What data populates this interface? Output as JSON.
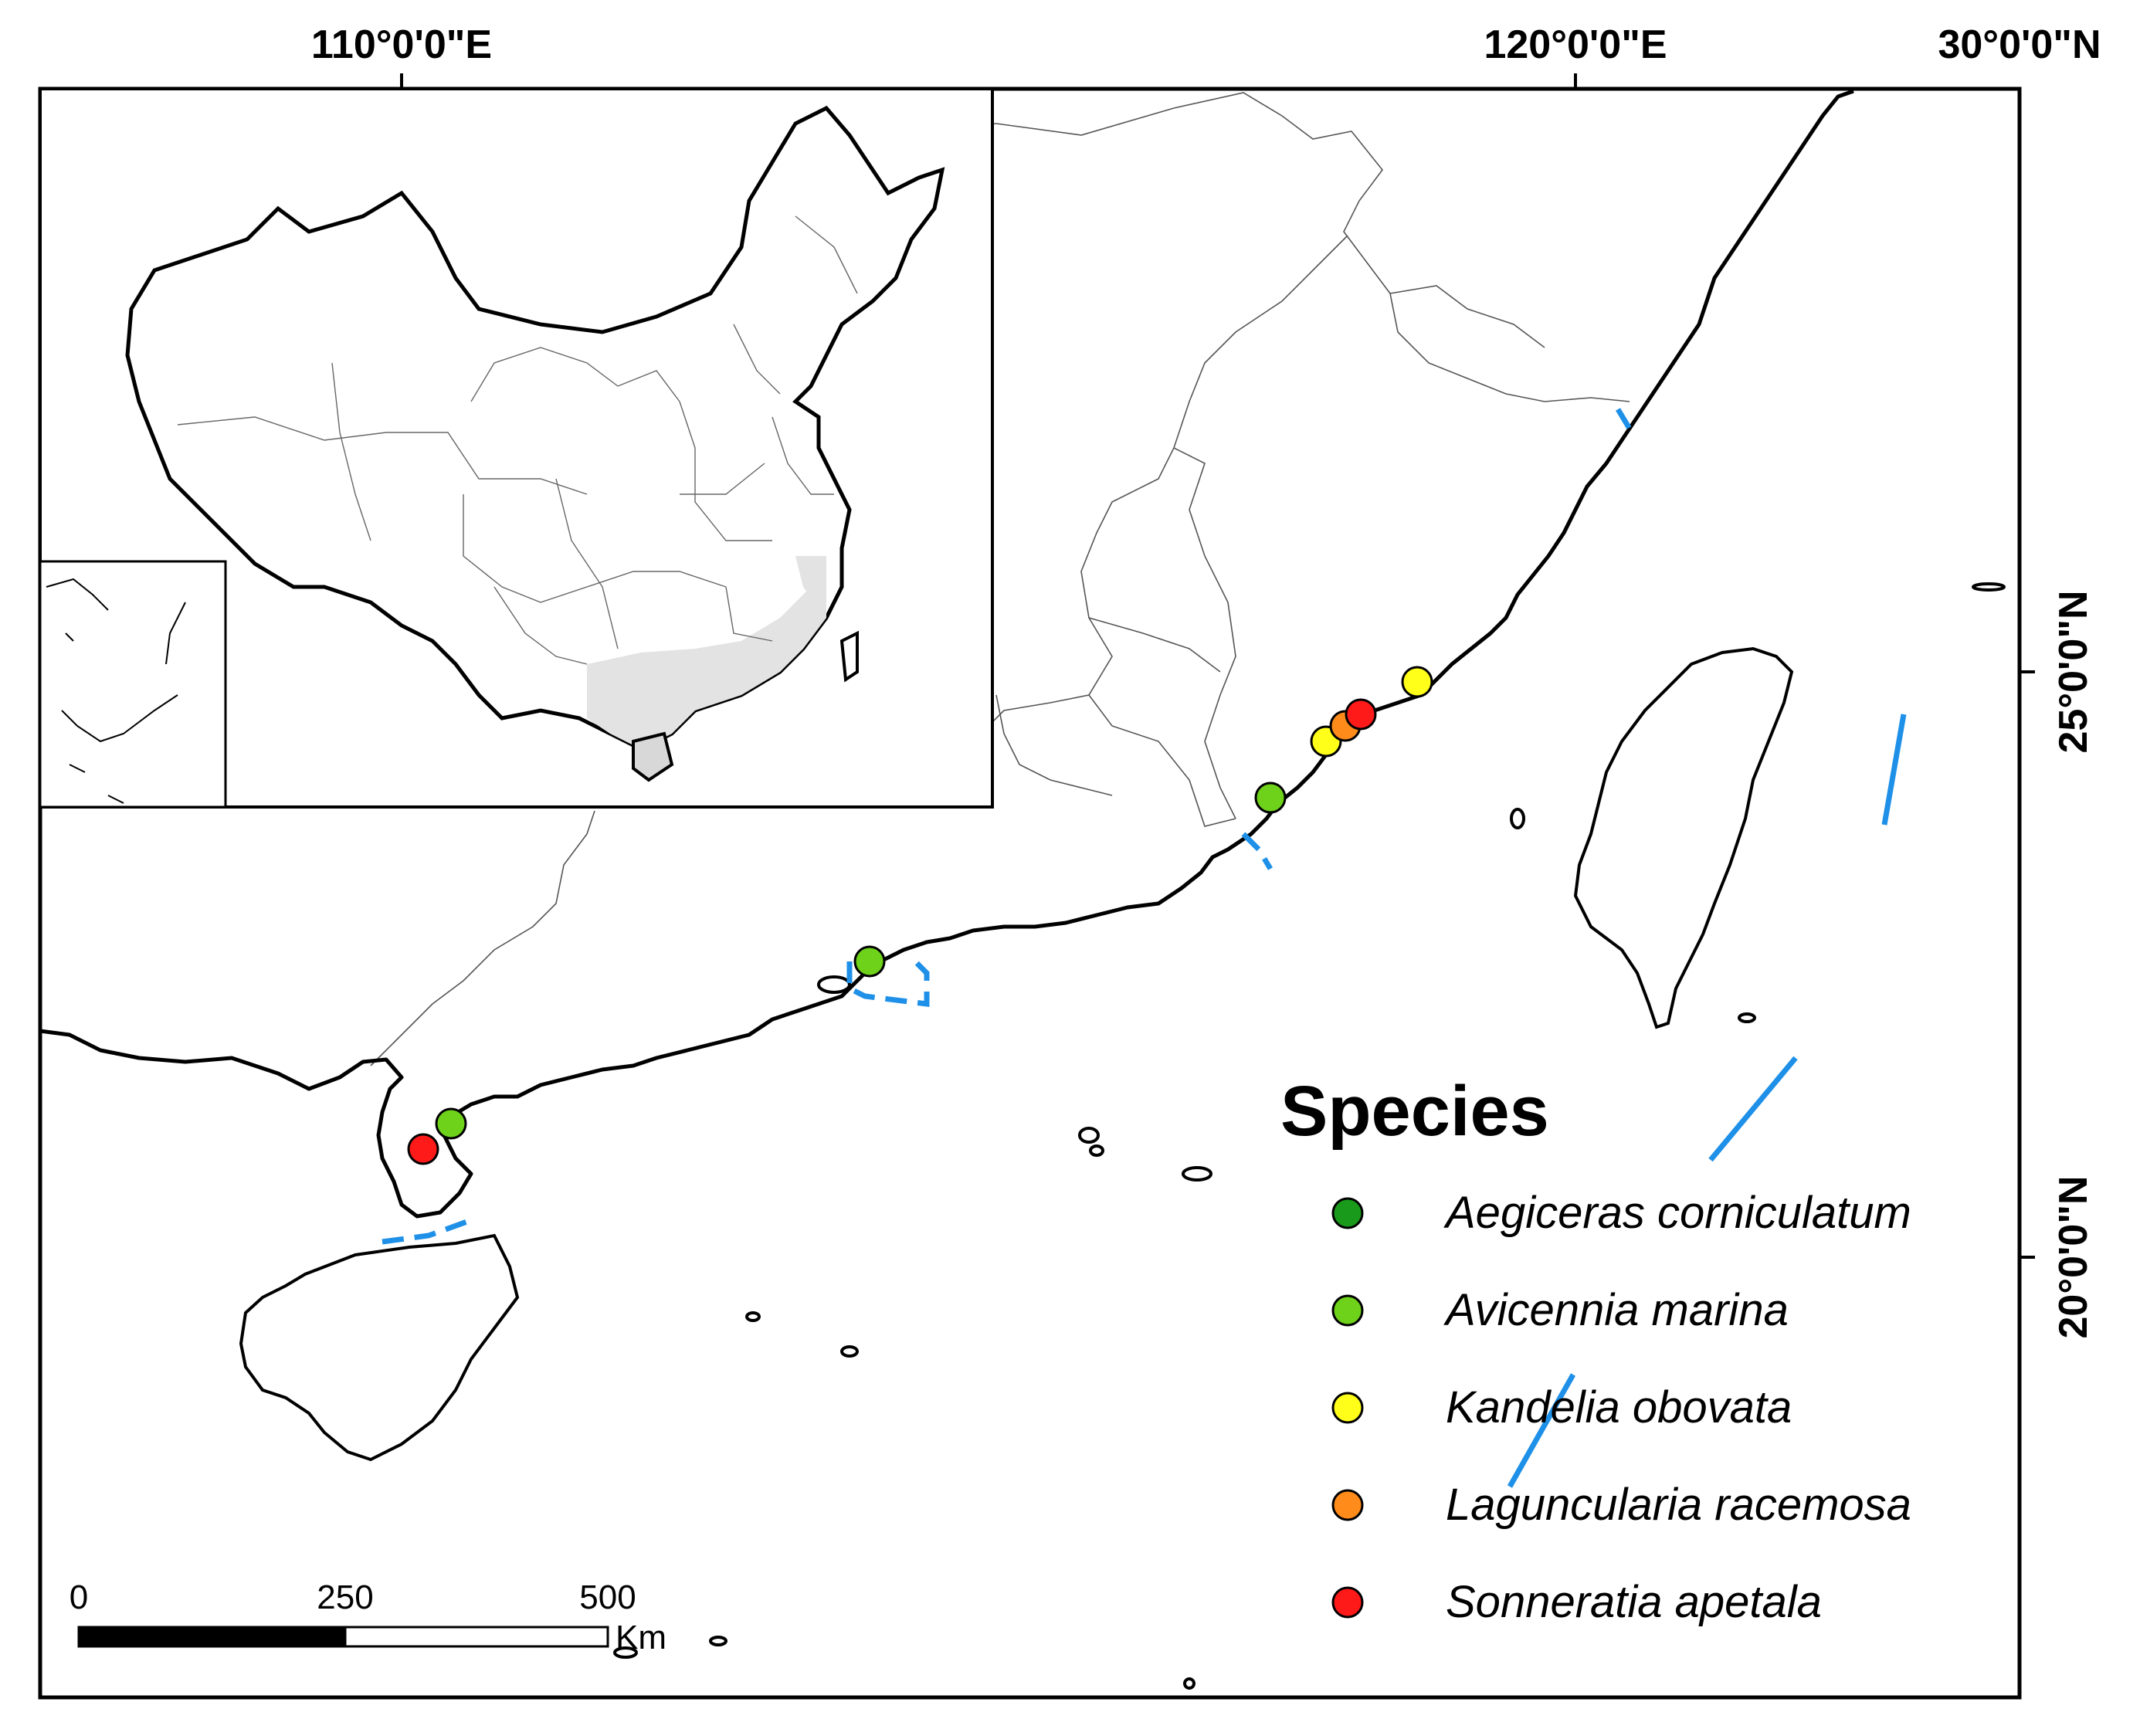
{
  "coordinates": {
    "lon_110": "110°0'0\"E",
    "lon_120": "120°0'0\"E",
    "lat_30": "30°0'0\"N",
    "lat_25": "25°0'0\"N",
    "lat_20": "20°0'0\"N"
  },
  "legend": {
    "title": "Species",
    "items": [
      {
        "name": "Aegiceras corniculatum",
        "color": "#1a9a1a"
      },
      {
        "name": "Avicennia marina",
        "color": "#6fd21a"
      },
      {
        "name": "Kandelia obovata",
        "color": "#ffff1a"
      },
      {
        "name": "Laguncularia racemosa",
        "color": "#ff8c1a"
      },
      {
        "name": "Sonneratia apetala",
        "color": "#ff1a1a"
      }
    ]
  },
  "scale_bar": {
    "ticks": [
      "0",
      "250",
      "500"
    ],
    "unit": "Km"
  },
  "sites": [
    {
      "species": "Sonneratia apetala",
      "color": "#ff1a1a"
    },
    {
      "species": "Avicennia marina",
      "color": "#6fd21a"
    },
    {
      "species": "Avicennia marina",
      "color": "#6fd21a"
    },
    {
      "species": "Avicennia marina",
      "color": "#6fd21a"
    },
    {
      "species": "Kandelia obovata",
      "color": "#ffff1a"
    },
    {
      "species": "Laguncularia racemosa",
      "color": "#ff8c1a"
    },
    {
      "species": "Sonneratia apetala",
      "color": "#ff1a1a"
    },
    {
      "species": "Kandelia obovata",
      "color": "#ffff1a"
    }
  ]
}
